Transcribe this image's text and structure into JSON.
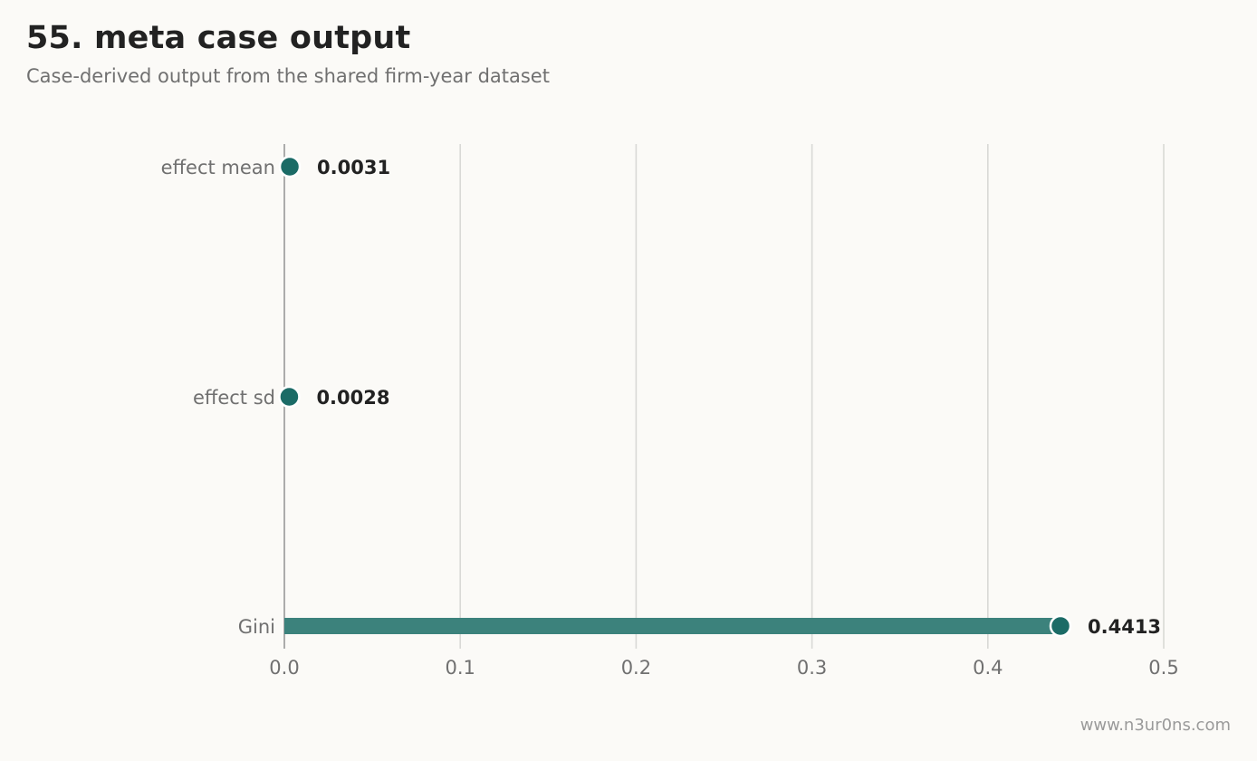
{
  "header": {
    "title": "55. meta case output",
    "subtitle": "Case-derived output from the shared firm-year dataset"
  },
  "footer": {
    "watermark": "www.n3ur0ns.com"
  },
  "colors": {
    "accent": "#1b6b66",
    "accent_bar": "#3c827c",
    "grid": "#d9d9d6",
    "axis": "#999999",
    "tick_text": "#707070",
    "value_text": "#222222"
  },
  "chart_data": {
    "type": "bar",
    "orientation": "horizontal",
    "style": "lollipop",
    "categories": [
      "effect mean",
      "effect sd",
      "Gini"
    ],
    "values": [
      0.0031,
      0.0028,
      0.4413
    ],
    "value_labels": [
      "0.0031",
      "0.0028",
      "0.4413"
    ],
    "x_ticks": [
      "0.0",
      "0.1",
      "0.2",
      "0.3",
      "0.4",
      "0.5"
    ],
    "xlim": [
      0,
      0.5
    ],
    "grid": "vertical",
    "legend": "none"
  }
}
